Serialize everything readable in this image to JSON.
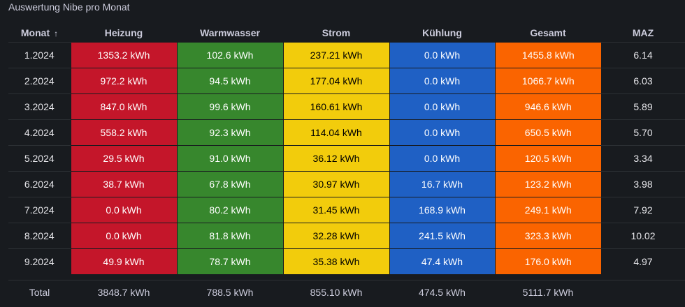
{
  "panel": {
    "title": "Auswertung Nibe pro Monat"
  },
  "columns": {
    "monat": "Monat",
    "sort_icon": "↑",
    "heizung": "Heizung",
    "warmwasser": "Warmwasser",
    "strom": "Strom",
    "kuehlung": "Kühlung",
    "gesamt": "Gesamt",
    "maz": "MAZ"
  },
  "colors": {
    "heizung": "#c4162a",
    "warmwasser": "#37872d",
    "strom": "#f2cc0c",
    "kuehlung": "#1f60c4",
    "gesamt": "#fa6400"
  },
  "rows": [
    {
      "monat": "1.2024",
      "heizung": "1353.2 kWh",
      "warmwasser": "102.6 kWh",
      "strom": "237.21 kWh",
      "kuehlung": "0.0 kWh",
      "gesamt": "1455.8 kWh",
      "maz": "6.14"
    },
    {
      "monat": "2.2024",
      "heizung": "972.2 kWh",
      "warmwasser": "94.5 kWh",
      "strom": "177.04 kWh",
      "kuehlung": "0.0 kWh",
      "gesamt": "1066.7 kWh",
      "maz": "6.03"
    },
    {
      "monat": "3.2024",
      "heizung": "847.0 kWh",
      "warmwasser": "99.6 kWh",
      "strom": "160.61 kWh",
      "kuehlung": "0.0 kWh",
      "gesamt": "946.6 kWh",
      "maz": "5.89"
    },
    {
      "monat": "4.2024",
      "heizung": "558.2 kWh",
      "warmwasser": "92.3 kWh",
      "strom": "114.04 kWh",
      "kuehlung": "0.0 kWh",
      "gesamt": "650.5 kWh",
      "maz": "5.70"
    },
    {
      "monat": "5.2024",
      "heizung": "29.5 kWh",
      "warmwasser": "91.0 kWh",
      "strom": "36.12 kWh",
      "kuehlung": "0.0 kWh",
      "gesamt": "120.5 kWh",
      "maz": "3.34"
    },
    {
      "monat": "6.2024",
      "heizung": "38.7 kWh",
      "warmwasser": "67.8 kWh",
      "strom": "30.97 kWh",
      "kuehlung": "16.7 kWh",
      "gesamt": "123.2 kWh",
      "maz": "3.98"
    },
    {
      "monat": "7.2024",
      "heizung": "0.0 kWh",
      "warmwasser": "80.2 kWh",
      "strom": "31.45 kWh",
      "kuehlung": "168.9 kWh",
      "gesamt": "249.1 kWh",
      "maz": "7.92"
    },
    {
      "monat": "8.2024",
      "heizung": "0.0 kWh",
      "warmwasser": "81.8 kWh",
      "strom": "32.28 kWh",
      "kuehlung": "241.5 kWh",
      "gesamt": "323.3 kWh",
      "maz": "10.02"
    },
    {
      "monat": "9.2024",
      "heizung": "49.9 kWh",
      "warmwasser": "78.7 kWh",
      "strom": "35.38 kWh",
      "kuehlung": "47.4 kWh",
      "gesamt": "176.0 kWh",
      "maz": "4.97"
    }
  ],
  "footer": {
    "label": "Total",
    "heizung": "3848.7 kWh",
    "warmwasser": "788.5 kWh",
    "strom": "855.10 kWh",
    "kuehlung": "474.5 kWh",
    "gesamt": "5111.7 kWh"
  }
}
